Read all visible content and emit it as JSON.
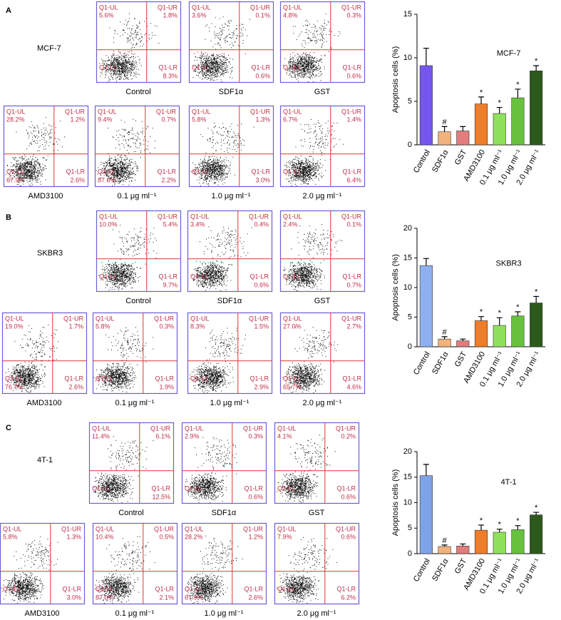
{
  "quadrant_names": {
    "ul": "Q1-UL",
    "ur": "Q1-UR",
    "ll": "Q1-LL",
    "lr": "Q1-LR"
  },
  "flow_panels": [
    {
      "label": "A",
      "cell_line": "MCF-7",
      "plots": [
        {
          "caption": "Control",
          "ul": "5.6%",
          "ur": "1.8%",
          "lr": "8.3%"
        },
        {
          "caption": "SDF1α",
          "ul": "3.6%",
          "ur": "0.1%",
          "lr": "0.6%"
        },
        {
          "caption": "GST",
          "ul": "4.8%",
          "ur": "0.3%",
          "lr": "0.6%"
        },
        {
          "caption": "AMD3100",
          "ul": "28.2%",
          "ur": "1.2%",
          "lr": "2.6%",
          "ll": "67.9%"
        },
        {
          "caption": "0.1 μg ml⁻¹",
          "ul": "9.4%",
          "ur": "0.7%",
          "lr": "2.2%",
          "ll": "87.6%"
        },
        {
          "caption": "1.0 μg ml⁻¹",
          "ul": "5.8%",
          "ur": "1.3%",
          "lr": "3.0%"
        },
        {
          "caption": "2.0 μg ml⁻¹",
          "ul": "6.7%",
          "ur": "1.4%",
          "lr": "6.4%"
        }
      ]
    },
    {
      "label": "B",
      "cell_line": "SKBR3",
      "plots": [
        {
          "caption": "Control",
          "ul": "10.0%",
          "ur": "5.4%",
          "lr": "9.7%"
        },
        {
          "caption": "SDF1α",
          "ul": "3.4%",
          "ur": "0.4%",
          "lr": "0.6%"
        },
        {
          "caption": "GST",
          "ul": "2.4%",
          "ur": "0.1%",
          "lr": "0.7%"
        },
        {
          "caption": "AMD3100",
          "ul": "19.0%",
          "ur": "1.7%",
          "lr": "2.6%",
          "ll": "76.7%"
        },
        {
          "caption": "0.1 μg ml⁻¹",
          "ul": "5.8%",
          "ur": "0.3%",
          "lr": "1.9%"
        },
        {
          "caption": "1.0 μg ml⁻¹",
          "ul": "8.3%",
          "ur": "1.5%",
          "lr": "2.9%"
        },
        {
          "caption": "2.0 μg ml⁻¹",
          "ul": "27.0%",
          "ur": "2.7%",
          "lr": "4.6%",
          "ll": "65.7%"
        }
      ]
    },
    {
      "label": "C",
      "cell_line": "4T-1",
      "plots": [
        {
          "caption": "Control",
          "ul": "11.4%",
          "ur": "6.1%",
          "lr": "12.5%"
        },
        {
          "caption": "SDF1α",
          "ul": "2.9%",
          "ur": "0.3%",
          "lr": "0.6%"
        },
        {
          "caption": "GST",
          "ul": "4.1%",
          "ur": "0.2%",
          "lr": "0.6%"
        },
        {
          "caption": "AMD3100",
          "ul": "5.8%",
          "ur": "1.3%",
          "lr": "3.0%"
        },
        {
          "caption": "0.1 μg ml⁻¹",
          "ul": "10.4%",
          "ur": "0.5%",
          "lr": "2.1%",
          "ll": "87.0%"
        },
        {
          "caption": "1.0 μg ml⁻¹",
          "ul": "28.2%",
          "ur": "1.2%",
          "lr": "2.6%",
          "ll": "67.9%"
        },
        {
          "caption": "2.0 μg ml⁻¹",
          "ul": "7.9%",
          "ur": "0.6%",
          "lr": "6.2%"
        }
      ]
    }
  ],
  "chart_data": [
    {
      "type": "bar",
      "title": "MCF-7",
      "ylabel": "Apoptosis cells (%)",
      "categories": [
        "Control",
        "SDF1α",
        "GST",
        "AMD3100",
        "0.1 μg ml⁻¹",
        "1.0 μg ml⁻¹",
        "2.0 μg ml⁻¹"
      ],
      "values": [
        9.1,
        1.5,
        1.6,
        4.7,
        3.6,
        5.4,
        8.5
      ],
      "errors": [
        2.0,
        0.6,
        0.5,
        0.8,
        0.7,
        1.0,
        0.6
      ],
      "colors": [
        "#7656f0",
        "#f2b27c",
        "#e27d7d",
        "#f07d2a",
        "#8fe05a",
        "#66c23c",
        "#2d5a1c"
      ],
      "annotations": [
        null,
        "#",
        null,
        "*",
        "*",
        "*",
        "*"
      ],
      "ylim": [
        0,
        15
      ],
      "yticks": [
        0,
        5,
        10,
        15
      ]
    },
    {
      "type": "bar",
      "title": "SKBR3",
      "ylabel": "Apoptosis cells (%)",
      "categories": [
        "Control",
        "SDF1α",
        "GST",
        "AMD3100",
        "0.1 μg ml⁻¹",
        "1.0 μg ml⁻¹",
        "2.0 μg ml⁻¹"
      ],
      "values": [
        13.7,
        1.3,
        1.0,
        4.4,
        3.6,
        5.2,
        7.4
      ],
      "errors": [
        1.2,
        0.4,
        0.3,
        0.7,
        1.3,
        0.7,
        1.1
      ],
      "colors": [
        "#8fb0f0",
        "#f2b27c",
        "#e27d7d",
        "#f07d2a",
        "#8fe05a",
        "#66c23c",
        "#2d5a1c"
      ],
      "annotations": [
        null,
        "#",
        null,
        "*",
        "*",
        "*",
        "*"
      ],
      "ylim": [
        0,
        20
      ],
      "yticks": [
        0,
        5,
        10,
        15,
        20
      ]
    },
    {
      "type": "bar",
      "title": "4T-1",
      "ylabel": "Apoptosis cells (%)",
      "categories": [
        "Control",
        "SDF1α",
        "GST",
        "AMD3100",
        "0.1 μg ml⁻¹",
        "1.0 μg ml⁻¹",
        "2.0 μg ml⁻¹"
      ],
      "values": [
        15.3,
        1.4,
        1.5,
        4.6,
        4.2,
        4.7,
        7.6
      ],
      "errors": [
        2.2,
        0.3,
        0.4,
        1.0,
        0.6,
        0.8,
        0.5
      ],
      "colors": [
        "#7fa3e8",
        "#f2b27c",
        "#e27d7d",
        "#f07d2a",
        "#8fe05a",
        "#66c23c",
        "#2d5a1c"
      ],
      "annotations": [
        null,
        "#",
        null,
        "*",
        "*",
        "*",
        "*"
      ],
      "ylim": [
        0,
        20
      ],
      "yticks": [
        0,
        5,
        10,
        15,
        20
      ]
    }
  ]
}
